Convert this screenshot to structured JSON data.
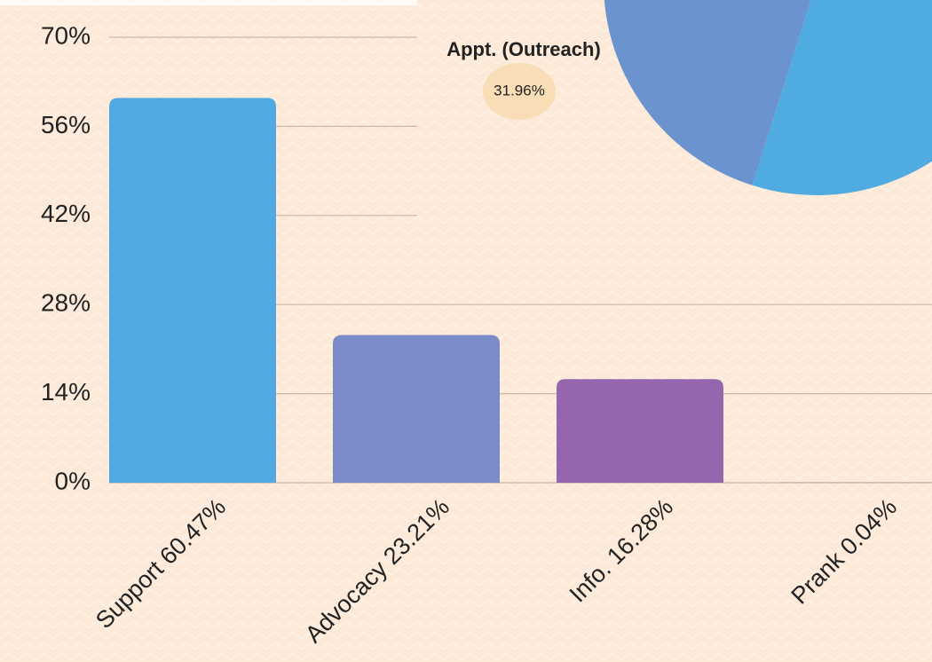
{
  "chart_data": [
    {
      "type": "bar",
      "categories": [
        "Support 60.47%",
        "Advocacy 23.21%",
        "Info. 16.28%",
        "Prank 0.04%"
      ],
      "values": [
        60.47,
        23.21,
        16.28,
        0.04
      ],
      "colors": [
        "#50a9e0",
        "#7a8bc8",
        "#9566ad",
        "#a0709c"
      ],
      "ylim": [
        0,
        70
      ],
      "yticks": [
        {
          "value": 0,
          "label": "0%"
        },
        {
          "value": 14,
          "label": "14%"
        },
        {
          "value": 28,
          "label": "28%"
        },
        {
          "value": 42,
          "label": "42%"
        },
        {
          "value": 56,
          "label": "56%"
        },
        {
          "value": 70,
          "label": "70%"
        }
      ],
      "grid": true
    },
    {
      "type": "pie",
      "labels": [
        "Appt. (Outreach)",
        null
      ],
      "values": [
        31.96,
        68.04
      ],
      "value_labels": [
        "31.96%",
        null
      ],
      "colors": [
        "#6a93cf",
        "#50abe0"
      ]
    }
  ]
}
